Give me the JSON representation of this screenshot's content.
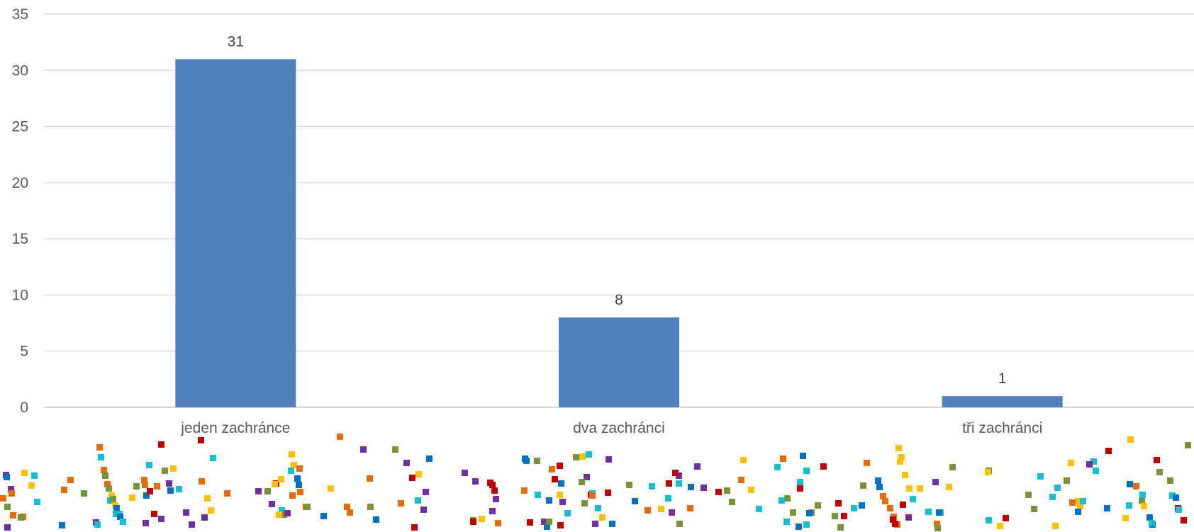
{
  "chart_data": {
    "type": "bar",
    "categories": [
      "jeden zachránce",
      "dva zachránci",
      "tři zachránci"
    ],
    "values": [
      31,
      8,
      1
    ],
    "data_labels": [
      "31",
      "8",
      "1"
    ],
    "title": "",
    "xlabel": "",
    "ylabel": "",
    "ylim": [
      0,
      35
    ],
    "yticks": [
      "0",
      "5",
      "10",
      "15",
      "20",
      "25",
      "30",
      "35"
    ],
    "grid": true,
    "legend": "none",
    "bar_color": "#4f81bd",
    "grid_color": "#d9d9d9",
    "decoration_colors": [
      "#77933c",
      "#17becf",
      "#ffc000",
      "#e46c0a",
      "#7030a0",
      "#c00000",
      "#0070c0"
    ]
  }
}
